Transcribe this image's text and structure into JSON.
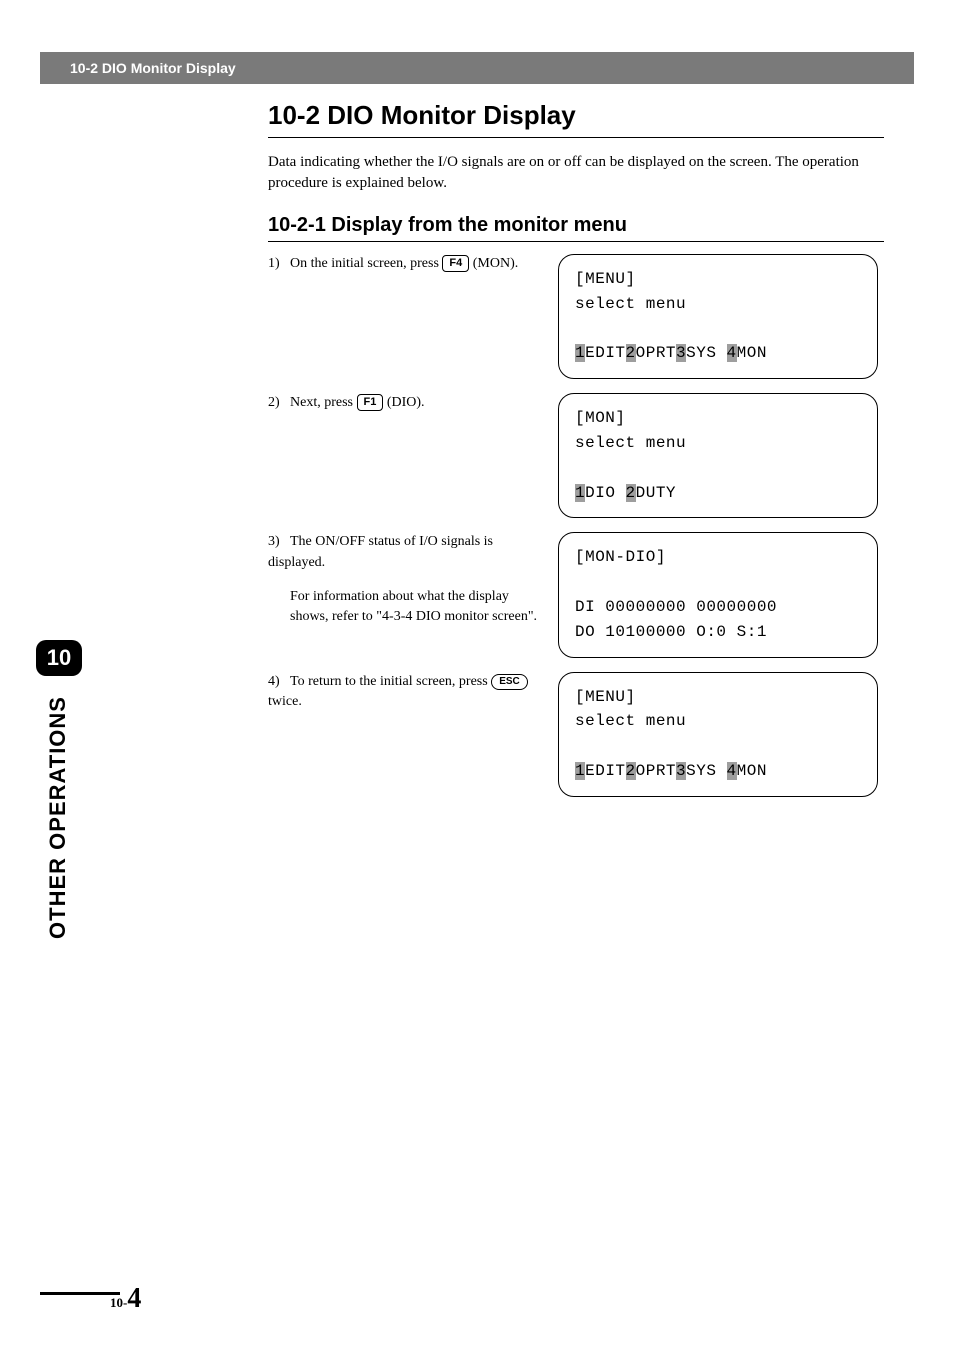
{
  "header": {
    "title": "10-2 DIO Monitor Display"
  },
  "section": {
    "heading": "10-2  DIO Monitor Display",
    "intro": "Data indicating whether the I/O signals are on or off can be displayed on the screen. The operation procedure is explained below.",
    "subheading": "10-2-1  Display from the monitor menu"
  },
  "steps": [
    {
      "num": "1)",
      "pre": "On the initial screen, press ",
      "key": "F4",
      "key_style": "square",
      "post": " (MON).",
      "sub": null
    },
    {
      "num": "2)",
      "pre": "Next, press ",
      "key": "F1",
      "key_style": "square",
      "post": " (DIO).",
      "sub": null
    },
    {
      "num": "3)",
      "pre": "The ON/OFF status of I/O signals is displayed.",
      "key": null,
      "post": "",
      "sub": "For information about what the display shows, refer to \"4-3-4 DIO monitor screen\"."
    },
    {
      "num": "4)",
      "pre": "To return to the initial screen, press ",
      "key": "ESC",
      "key_style": "oval",
      "post": " twice.",
      "sub": null
    }
  ],
  "lcds": [
    {
      "title": "[MENU]",
      "sub": "select menu",
      "body": null,
      "footer_tokens": [
        {
          "t": "1",
          "inv": true
        },
        {
          "t": "EDIT",
          "inv": false
        },
        {
          "t": "2",
          "inv": true
        },
        {
          "t": "OPRT",
          "inv": false
        },
        {
          "t": "3",
          "inv": true
        },
        {
          "t": "SYS ",
          "inv": false
        },
        {
          "t": "4",
          "inv": true
        },
        {
          "t": "MON",
          "inv": false
        }
      ]
    },
    {
      "title": "[MON]",
      "sub": "select menu",
      "body": null,
      "footer_tokens": [
        {
          "t": "1",
          "inv": true
        },
        {
          "t": "DIO ",
          "inv": false
        },
        {
          "t": "2",
          "inv": true
        },
        {
          "t": "DUTY",
          "inv": false
        }
      ]
    },
    {
      "title": "[MON-DIO]",
      "sub": null,
      "body": [
        "DI 00000000 00000000",
        "DO 10100000 O:0 S:1"
      ],
      "footer_tokens": null
    },
    {
      "title": "[MENU]",
      "sub": "select menu",
      "body": null,
      "footer_tokens": [
        {
          "t": "1",
          "inv": true
        },
        {
          "t": "EDIT",
          "inv": false
        },
        {
          "t": "2",
          "inv": true
        },
        {
          "t": "OPRT",
          "inv": false
        },
        {
          "t": "3",
          "inv": true
        },
        {
          "t": "SYS ",
          "inv": false
        },
        {
          "t": "4",
          "inv": true
        },
        {
          "t": "MON",
          "inv": false
        }
      ]
    }
  ],
  "sidebar": {
    "chapter": "10",
    "label": "OTHER OPERATIONS"
  },
  "footer": {
    "page_prefix": "10-",
    "page_number": "4"
  },
  "colors": {
    "header_bg": "#7a7a7a",
    "inv_bg": "#9e9e9e"
  }
}
